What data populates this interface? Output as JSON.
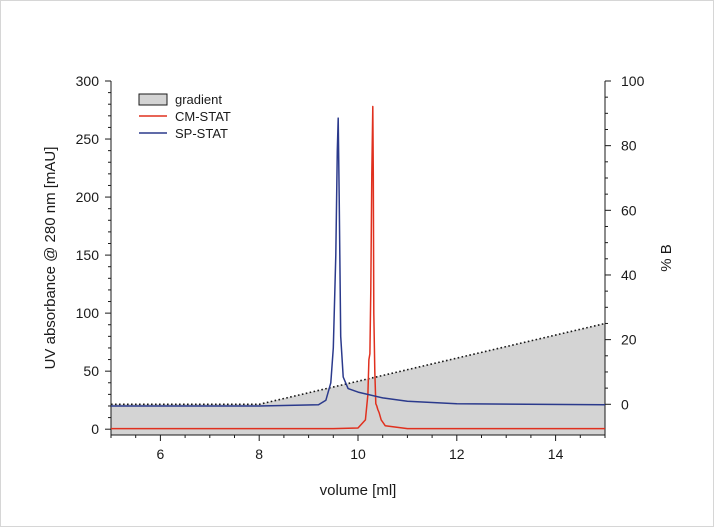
{
  "chart_data": {
    "type": "line",
    "xlabel": "volume [ml]",
    "ylabel": "UV absorbance @ 280 nm [mAU]",
    "y2label": "% B",
    "xlim": [
      5,
      15
    ],
    "ylim": [
      -5,
      300
    ],
    "y2lim": [
      -9.5,
      100
    ],
    "x_ticks": [
      "6",
      "8",
      "10",
      "12",
      "14"
    ],
    "y_ticks": [
      "0",
      "50",
      "100",
      "150",
      "200",
      "250",
      "300"
    ],
    "y2_ticks": [
      "0",
      "20",
      "40",
      "60",
      "80",
      "100"
    ],
    "legend_position": "top-left",
    "legend": [
      {
        "label": "gradient",
        "swatch": "box"
      },
      {
        "label": "CM-STAT",
        "swatch": "line"
      },
      {
        "label": "SP-STAT",
        "swatch": "line"
      }
    ],
    "series": [
      {
        "name": "gradient",
        "axis": "right",
        "style": "dotted-area",
        "color": "#1a1a1a",
        "fill": "#d4d4d4",
        "x": [
          5,
          8,
          15
        ],
        "y": [
          0,
          0,
          25
        ]
      },
      {
        "name": "CM-STAT",
        "axis": "left",
        "color": "#e0301e",
        "x": [
          5,
          9.5,
          10.0,
          10.15,
          10.2,
          10.22,
          10.24,
          10.26,
          10.28,
          10.3,
          10.31,
          10.32,
          10.34,
          10.36,
          10.38,
          10.4,
          10.43,
          10.47,
          10.55,
          11,
          15
        ],
        "y": [
          0.5,
          0.5,
          1,
          8,
          30,
          60,
          65,
          120,
          220,
          278,
          220,
          100,
          50,
          22,
          20,
          17,
          14,
          8,
          3,
          0.5,
          0.5
        ]
      },
      {
        "name": "SP-STAT",
        "axis": "left",
        "color": "#2b3a8c",
        "x": [
          5,
          8,
          9.2,
          9.35,
          9.45,
          9.5,
          9.55,
          9.58,
          9.6,
          9.62,
          9.65,
          9.7,
          9.8,
          10,
          10.5,
          11,
          12,
          15
        ],
        "y": [
          20,
          20,
          21,
          25,
          40,
          70,
          150,
          240,
          268,
          200,
          80,
          45,
          35,
          32,
          27,
          24,
          22,
          21
        ]
      }
    ]
  }
}
